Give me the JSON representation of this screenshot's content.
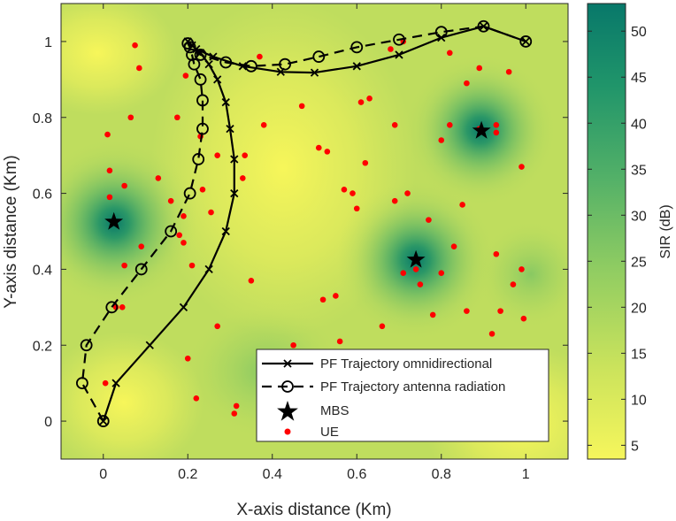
{
  "chart_data": {
    "type": "scatter",
    "title": "",
    "xlabel": "X-axis distance (Km)",
    "ylabel": "Y-axis distance (Km)",
    "xlim": [
      -0.1,
      1.1
    ],
    "ylim": [
      -0.1,
      1.1
    ],
    "xticks": [
      "0",
      "0.2",
      "0.4",
      "0.6",
      "0.8",
      "1"
    ],
    "xtick_values": [
      0,
      0.2,
      0.4,
      0.6,
      0.8,
      1
    ],
    "yticks": [
      "0",
      "0.2",
      "0.4",
      "0.6",
      "0.8",
      "1"
    ],
    "ytick_values": [
      0,
      0.2,
      0.4,
      0.6,
      0.8,
      1
    ],
    "colorbar": {
      "label": "SIR (dB)",
      "range": [
        3.5,
        53
      ],
      "ticks": [
        "5",
        "10",
        "15",
        "20",
        "25",
        "30",
        "35",
        "40",
        "45",
        "50"
      ],
      "tick_values": [
        5,
        10,
        15,
        20,
        25,
        30,
        35,
        40,
        45,
        50
      ],
      "color_low": "#f6f65c",
      "color_high": "#08786a"
    },
    "legend": {
      "location": "bottom-right",
      "entries": [
        "PF Trajectory omnidirectional",
        "PF Trajectory antenna radiation",
        "MBS",
        "UE"
      ]
    },
    "series": [
      {
        "name": "PF Trajectory omnidirectional",
        "marker": "x",
        "line": "solid",
        "x": [
          0,
          0.03,
          0.11,
          0.19,
          0.25,
          0.29,
          0.31,
          0.31,
          0.3,
          0.29,
          0.27,
          0.25,
          0.23,
          0.21,
          0.2,
          0.22,
          0.26,
          0.33,
          0.42,
          0.5,
          0.6,
          0.7,
          0.8,
          0.9,
          1.0
        ],
        "y": [
          0,
          0.1,
          0.2,
          0.3,
          0.4,
          0.5,
          0.6,
          0.69,
          0.77,
          0.84,
          0.9,
          0.94,
          0.97,
          0.99,
          1.0,
          0.98,
          0.96,
          0.935,
          0.92,
          0.918,
          0.935,
          0.965,
          1.01,
          1.04,
          1.0
        ]
      },
      {
        "name": "PF Trajectory antenna radiation",
        "marker": "o",
        "line": "dashed",
        "x": [
          0,
          -0.05,
          -0.04,
          0.02,
          0.09,
          0.16,
          0.205,
          0.225,
          0.235,
          0.235,
          0.23,
          0.215,
          0.21,
          0.205,
          0.2,
          0.23,
          0.29,
          0.35,
          0.43,
          0.51,
          0.6,
          0.7,
          0.8,
          0.9,
          1.0
        ],
        "y": [
          0,
          0.1,
          0.2,
          0.3,
          0.4,
          0.5,
          0.6,
          0.69,
          0.77,
          0.845,
          0.9,
          0.94,
          0.965,
          0.985,
          0.995,
          0.965,
          0.945,
          0.935,
          0.94,
          0.96,
          0.985,
          1.005,
          1.025,
          1.04,
          1.0
        ]
      }
    ],
    "mbs": {
      "name": "MBS",
      "x": [
        0.025,
        0.74,
        0.895
      ],
      "y": [
        0.525,
        0.425,
        0.765
      ]
    },
    "ue": {
      "name": "UE",
      "x": [
        0.075,
        0.085,
        0.065,
        0.01,
        0.015,
        0.015,
        0.05,
        0.09,
        0.03,
        0.045,
        0.05,
        0.005,
        0.13,
        0.175,
        0.195,
        0.2,
        0.22,
        0.23,
        0.235,
        0.255,
        0.18,
        0.16,
        0.27,
        0.27,
        0.21,
        0.19,
        0.19,
        0.31,
        0.315,
        0.33,
        0.335,
        0.35,
        0.38,
        0.37,
        0.45,
        0.47,
        0.52,
        0.55,
        0.56,
        0.53,
        0.51,
        0.57,
        0.59,
        0.6,
        0.62,
        0.61,
        0.63,
        0.66,
        0.69,
        0.69,
        0.72,
        0.71,
        0.74,
        0.75,
        0.77,
        0.78,
        0.8,
        0.8,
        0.82,
        0.83,
        0.85,
        0.86,
        0.86,
        0.89,
        0.89,
        0.93,
        0.93,
        0.96,
        0.97,
        0.99,
        0.99,
        0.995,
        0.94,
        0.93,
        0.92,
        0.71,
        0.68,
        0.82
      ],
      "y": [
        0.99,
        0.93,
        0.8,
        0.755,
        0.66,
        0.59,
        0.62,
        0.46,
        0.3,
        0.3,
        0.41,
        0.1,
        0.64,
        0.8,
        0.91,
        0.165,
        0.06,
        0.75,
        0.61,
        0.55,
        0.49,
        0.58,
        0.7,
        0.25,
        0.41,
        0.47,
        0.54,
        0.02,
        0.04,
        0.64,
        0.7,
        0.37,
        0.78,
        0.96,
        0.2,
        0.83,
        0.32,
        0.33,
        0.21,
        0.71,
        0.72,
        0.61,
        0.6,
        0.56,
        0.68,
        0.84,
        0.85,
        0.25,
        0.58,
        0.78,
        0.6,
        0.39,
        0.4,
        0.36,
        0.53,
        0.28,
        0.39,
        0.74,
        0.78,
        0.46,
        0.57,
        0.89,
        0.29,
        0.93,
        0.77,
        0.78,
        0.76,
        0.92,
        0.36,
        0.67,
        0.4,
        0.27,
        0.29,
        0.44,
        0.23,
        1.0,
        0.98,
        0.97
      ]
    }
  }
}
